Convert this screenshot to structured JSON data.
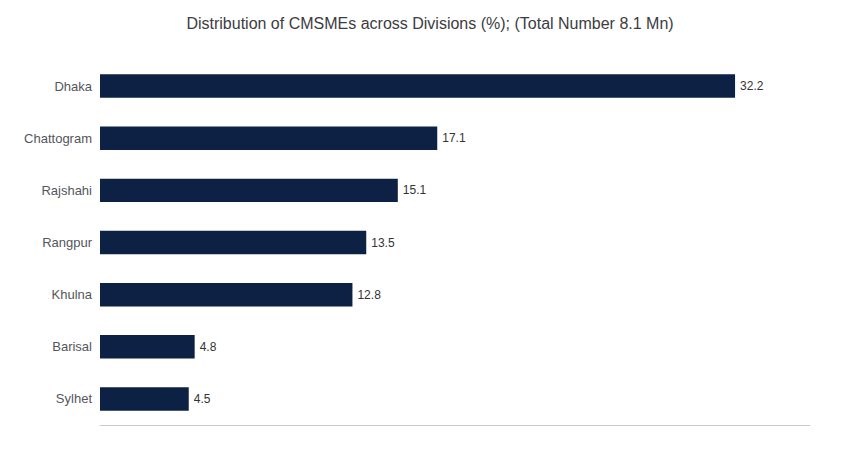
{
  "chart_data": {
    "type": "bar",
    "orientation": "horizontal",
    "title": "Distribution of CMSMEs across Divisions (%); (Total Number 8.1 Mn)",
    "categories": [
      "Dhaka",
      "Chattogram",
      "Rajshahi",
      "Rangpur",
      "Khulna",
      "Barisal",
      "Sylhet"
    ],
    "values": [
      32.2,
      17.1,
      15.1,
      13.5,
      12.8,
      4.8,
      4.5
    ],
    "color": "#0d2145",
    "xlim": [
      0,
      36
    ],
    "tick_labels": "y",
    "data_labels": true,
    "grid": false
  }
}
